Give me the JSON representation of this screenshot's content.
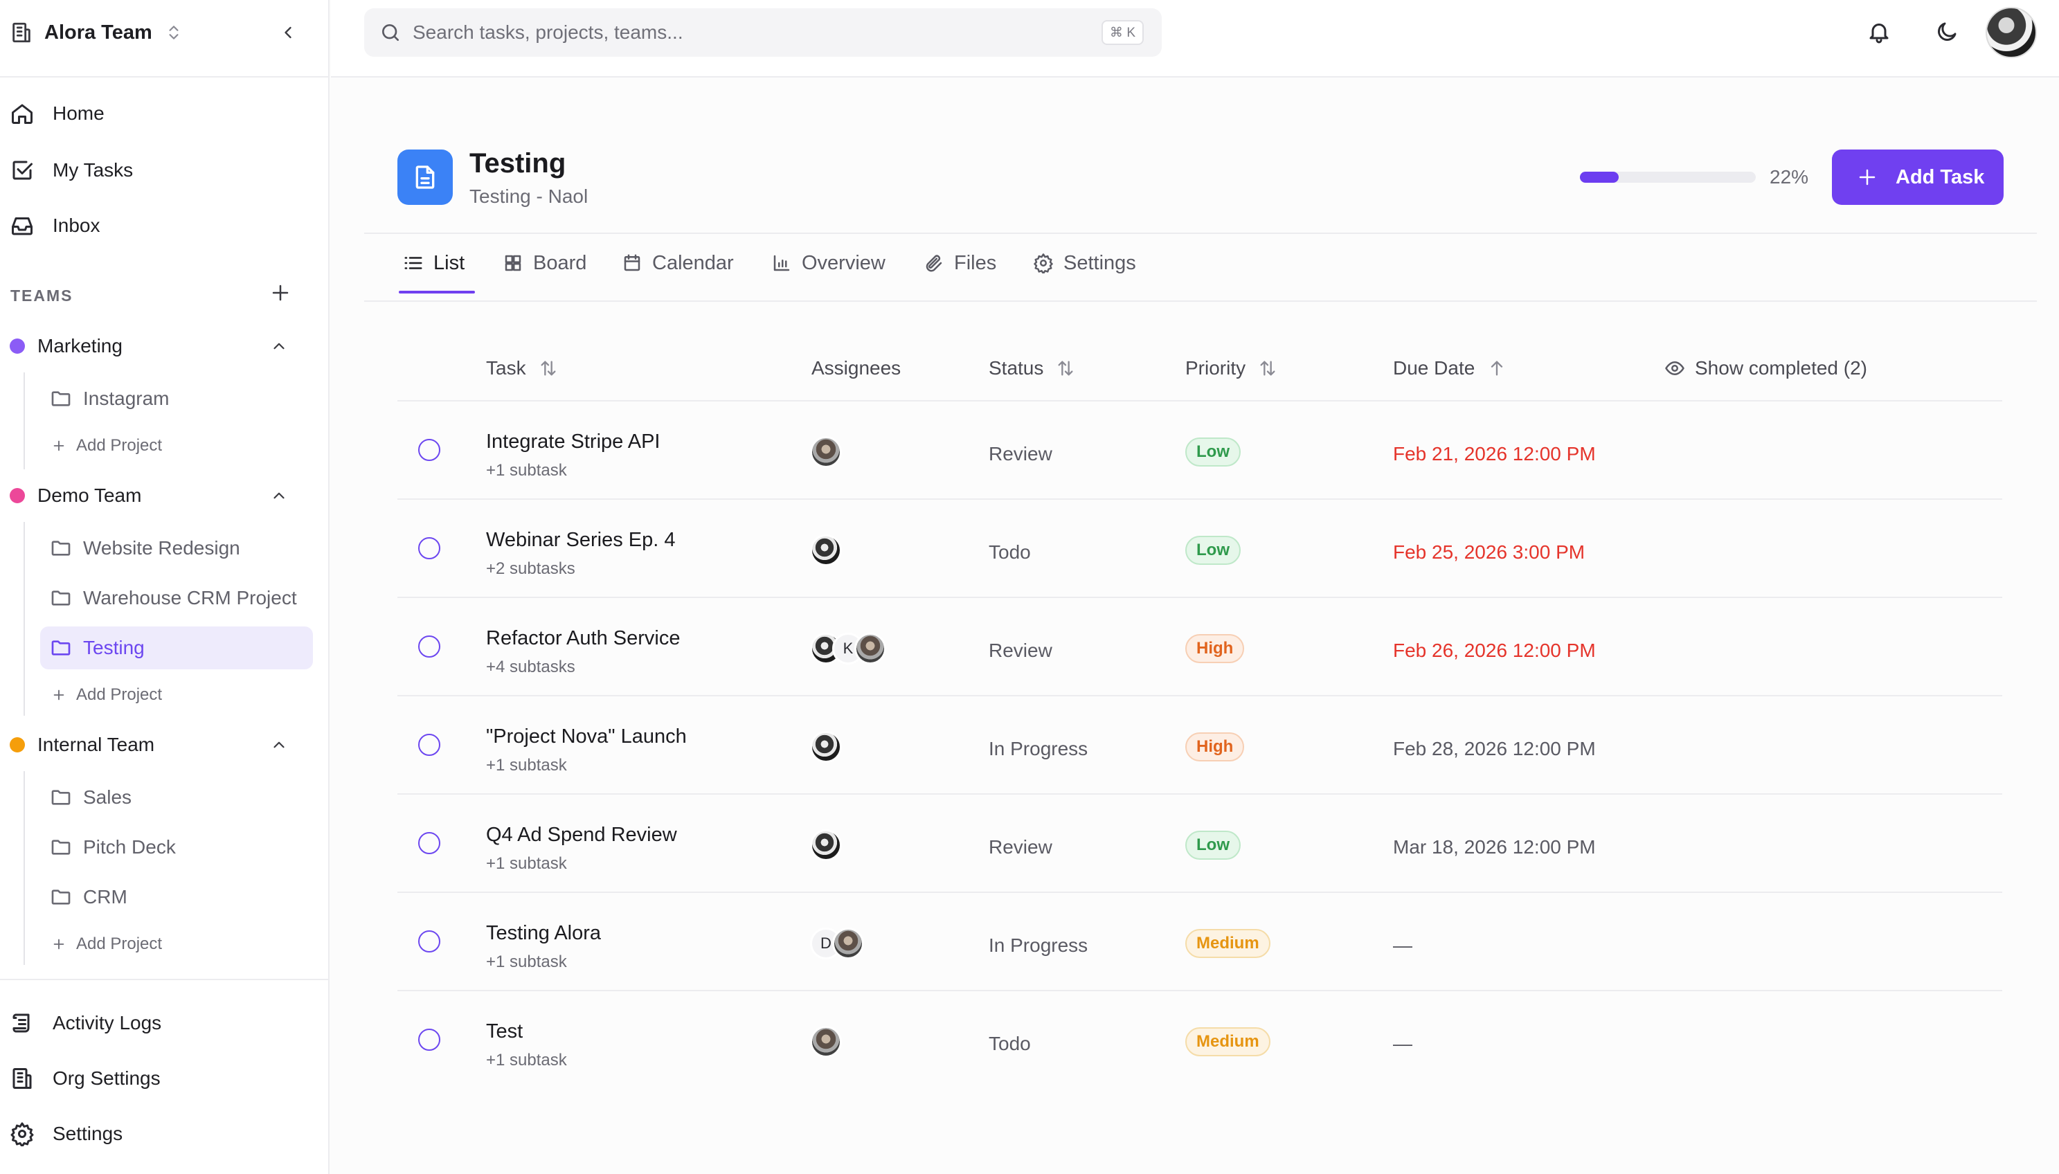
{
  "sidebar": {
    "team_name": "Alora Team",
    "nav": [
      {
        "label": "Home",
        "icon": "home-icon"
      },
      {
        "label": "My Tasks",
        "icon": "check-square-icon"
      },
      {
        "label": "Inbox",
        "icon": "inbox-icon"
      }
    ],
    "teams_label": "TEAMS",
    "teams": [
      {
        "name": "Marketing",
        "color": "#8b5cf6",
        "projects": [
          "Instagram"
        ],
        "add_label": "Add Project"
      },
      {
        "name": "Demo Team",
        "color": "#ec4899",
        "projects": [
          "Website Redesign",
          "Warehouse CRM Project",
          "Testing"
        ],
        "active_project": "Testing",
        "add_label": "Add Project"
      },
      {
        "name": "Internal Team",
        "color": "#f59e0b",
        "projects": [
          "Sales",
          "Pitch Deck",
          "CRM"
        ],
        "add_label": "Add Project"
      }
    ],
    "bottom_nav": [
      {
        "label": "Activity Logs",
        "icon": "scroll-icon"
      },
      {
        "label": "Org Settings",
        "icon": "building-icon"
      },
      {
        "label": "Settings",
        "icon": "gear-icon"
      }
    ]
  },
  "topbar": {
    "search_placeholder": "Search tasks, projects, teams...",
    "shortcut": "⌘ K"
  },
  "project": {
    "title": "Testing",
    "subtitle": "Testing - Naol",
    "progress_pct": 22,
    "progress_label": "22%",
    "add_task_label": "Add Task",
    "icon_color": "#3b82f6",
    "accent": "#7040f0"
  },
  "tabs": [
    {
      "label": "List",
      "icon": "list-icon",
      "active": true
    },
    {
      "label": "Board",
      "icon": "grid-icon"
    },
    {
      "label": "Calendar",
      "icon": "calendar-icon"
    },
    {
      "label": "Overview",
      "icon": "bar-chart-icon"
    },
    {
      "label": "Files",
      "icon": "paperclip-icon"
    },
    {
      "label": "Settings",
      "icon": "gear-icon"
    }
  ],
  "table": {
    "columns": {
      "task": "Task",
      "assignees": "Assignees",
      "status": "Status",
      "priority": "Priority",
      "due": "Due Date",
      "show_completed": "Show completed (2)"
    },
    "rows": [
      {
        "title": "Integrate Stripe API",
        "sub": "+1 subtask",
        "status": "Review",
        "priority": "Low",
        "due": "Feb 21, 2026 12:00 PM",
        "overdue": true
      },
      {
        "title": "Webinar Series Ep. 4",
        "sub": "+2 subtasks",
        "status": "Todo",
        "priority": "Low",
        "due": "Feb 25, 2026 3:00 PM",
        "overdue": true
      },
      {
        "title": "Refactor Auth Service",
        "sub": "+4 subtasks",
        "status": "Review",
        "priority": "High",
        "due": "Feb 26, 2026 12:00 PM",
        "overdue": true,
        "assignee_letter": "K"
      },
      {
        "title": "\"Project Nova\" Launch",
        "sub": "+1 subtask",
        "status": "In Progress",
        "priority": "High",
        "due": "Feb 28, 2026 12:00 PM",
        "overdue": false
      },
      {
        "title": "Q4 Ad Spend Review",
        "sub": "+1 subtask",
        "status": "Review",
        "priority": "Low",
        "due": "Mar 18, 2026 12:00 PM",
        "overdue": false
      },
      {
        "title": "Testing Alora",
        "sub": "+1 subtask",
        "status": "In Progress",
        "priority": "Medium",
        "due": "—",
        "overdue": false,
        "assignee_letter": "D"
      },
      {
        "title": "Test",
        "sub": "+1 subtask",
        "status": "Todo",
        "priority": "Medium",
        "due": "—",
        "overdue": false
      }
    ]
  }
}
